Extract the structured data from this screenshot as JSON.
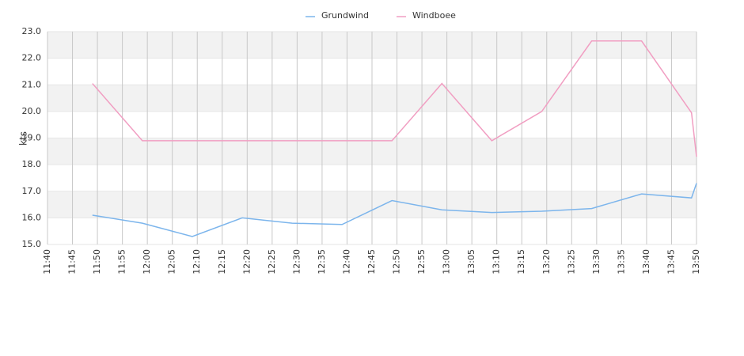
{
  "chart_data": {
    "type": "line",
    "ylabel": "kts",
    "x": [
      "11:49",
      "11:59",
      "12:09",
      "12:19",
      "12:29",
      "12:39",
      "12:49",
      "12:59",
      "13:09",
      "13:19",
      "13:29",
      "13:39",
      "13:49",
      "13:50"
    ],
    "series": [
      {
        "name": "Grundwind",
        "color": "#7cb5ec",
        "values": [
          16.1,
          15.8,
          15.3,
          16.0,
          15.8,
          15.75,
          16.65,
          16.3,
          16.2,
          16.25,
          16.35,
          16.9,
          16.75,
          17.3
        ]
      },
      {
        "name": "Windboee",
        "color": "#f19ec2",
        "values": [
          21.05,
          18.9,
          18.9,
          18.9,
          18.9,
          18.9,
          18.9,
          21.05,
          18.9,
          20.0,
          22.65,
          22.65,
          19.95,
          18.3
        ]
      }
    ],
    "xlim": [
      "11:40",
      "13:50"
    ],
    "xticks": [
      "11:40",
      "11:45",
      "11:50",
      "11:55",
      "12:00",
      "12:05",
      "12:10",
      "12:15",
      "12:20",
      "12:25",
      "12:30",
      "12:35",
      "12:40",
      "12:45",
      "12:50",
      "12:55",
      "13:00",
      "13:05",
      "13:10",
      "13:15",
      "13:20",
      "13:25",
      "13:30",
      "13:35",
      "13:40",
      "13:45",
      "13:50"
    ],
    "ylim": [
      15,
      23
    ],
    "yticks": [
      {
        "value": 15,
        "label": "15.0"
      },
      {
        "value": 16,
        "label": "16.0"
      },
      {
        "value": 17,
        "label": "17.0"
      },
      {
        "value": 18,
        "label": "18.0"
      },
      {
        "value": 19,
        "label": "19.0"
      },
      {
        "value": 20,
        "label": "20.0"
      },
      {
        "value": 21,
        "label": "21.0"
      },
      {
        "value": 22,
        "label": "22.0"
      },
      {
        "value": 23,
        "label": "23.0"
      }
    ],
    "grid": true,
    "legend": "top"
  }
}
